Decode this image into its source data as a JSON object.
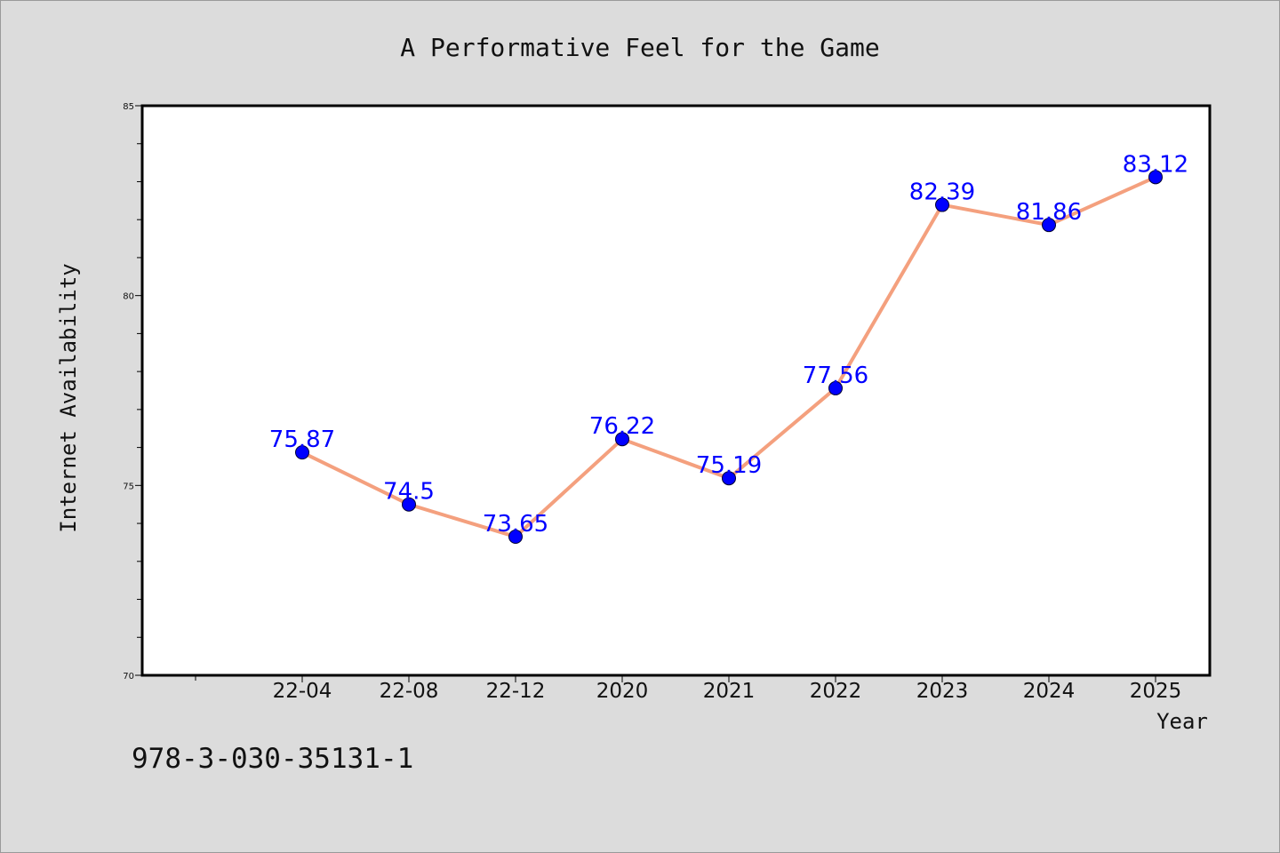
{
  "chart_data": {
    "type": "line",
    "title": "A Performative Feel for the Game",
    "xlabel": "Year",
    "ylabel": "Internet Availability",
    "categories": [
      "22-04",
      "22-08",
      "22-12",
      "2020",
      "2021",
      "2022",
      "2023",
      "2024",
      "2025"
    ],
    "series": [
      {
        "values": [
          75.87,
          74.5,
          73.65,
          76.22,
          75.19,
          77.56,
          82.39,
          81.86,
          83.12
        ]
      }
    ],
    "ylim": [
      70,
      85
    ],
    "yticks": [
      70,
      75,
      80,
      85
    ],
    "grid": false,
    "legend": "none",
    "colors": {
      "line": "#f4a07e",
      "marker": "#0000ff",
      "marker_edge": "#000033",
      "label": "#0000ff",
      "plot_bg": "#ffffff",
      "page_bg": "#dcdcdc"
    }
  },
  "footer": {
    "isbn": "978-3-030-35131-1"
  }
}
